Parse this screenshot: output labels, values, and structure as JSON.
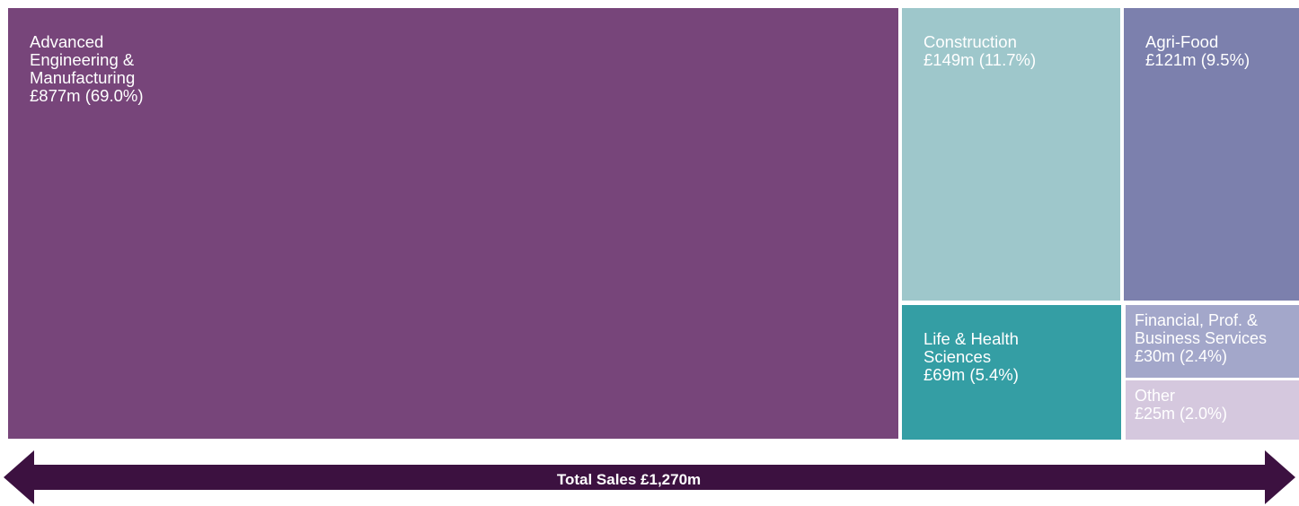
{
  "chart_data": {
    "type": "treemap",
    "unit": "£m",
    "total_label": "Total Sales £1,270m",
    "items": [
      {
        "name": "Advanced\nEngineering &\nManufacturing",
        "value_label": "£877m (69.0%)",
        "value": 877,
        "percent": 69.0,
        "color": "#77457a",
        "text_color": "#ffffff"
      },
      {
        "name": "Construction",
        "value_label": "£149m (11.7%)",
        "value": 149,
        "percent": 11.7,
        "color": "#9ec7cb",
        "text_color": "#ffffff"
      },
      {
        "name": "Agri-Food",
        "value_label": "£121m (9.5%)",
        "value": 121,
        "percent": 9.5,
        "color": "#7c80ad",
        "text_color": "#ffffff"
      },
      {
        "name": "Life & Health\nSciences",
        "value_label": "£69m (5.4%)",
        "value": 69,
        "percent": 5.4,
        "color": "#349ea4",
        "text_color": "#ffffff"
      },
      {
        "name": "Financial, Prof. &\nBusiness Services",
        "value_label": "£30m (2.4%)",
        "value": 30,
        "percent": 2.4,
        "color": "#a3a7ca",
        "text_color": "#ffffff"
      },
      {
        "name": "Other",
        "value_label": "£25m (2.0%)",
        "value": 25,
        "percent": 2.0,
        "color": "#d5c8de",
        "text_color": "#ffffff"
      }
    ],
    "arrow_color": "#3c1140"
  }
}
